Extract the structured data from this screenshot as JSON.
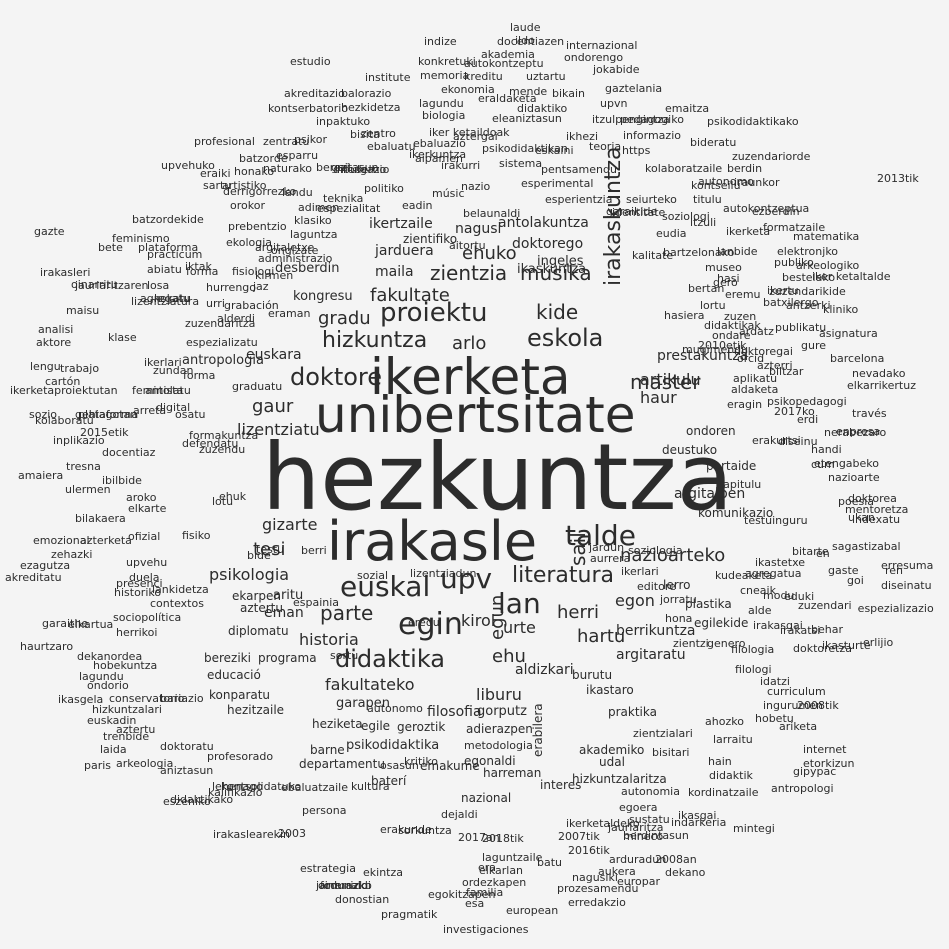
{
  "colors": {
    "background": "#f4f4f4",
    "text": "#2c2c2c"
  },
  "words": [
    "hezkuntza",
    "irakasle",
    "unibertsitate",
    "ikerketa",
    "euskal",
    "egin",
    "upv",
    "lan",
    "talde",
    "literatura",
    "didaktika",
    "proiektu",
    "hizkuntza",
    "eskola",
    "doktore",
    "master",
    "irakaskuntza",
    "sail",
    "musika",
    "kide",
    "zientzia",
    "ehuko",
    "gradu",
    "fakultate",
    "arlo",
    "parte",
    "herri",
    "hartu",
    "ehu",
    "egun",
    "urte",
    "kirol",
    "nazioarteko",
    "gaur",
    "haur",
    "artikulu",
    "lizentziatu",
    "gizarte",
    "tesi",
    "psikologia",
    "fakultateko",
    "historia",
    "liburu",
    "filosofia",
    "aldizkari",
    "egon",
    "berrikuntza",
    "argitaratu",
    "argitalpen",
    "prestakuntza",
    "antolakuntza",
    "doktorego",
    "ikaskuntza",
    "ikertzaile",
    "jarduera",
    "nagusi",
    "ingeles",
    "zientifiko",
    "maila",
    "desberdin",
    "kongresu",
    "euskara",
    "antropologia",
    "garapen",
    "psikodidaktika",
    "gorputz",
    "adierazpen",
    "metodologia",
    "geroztik",
    "komunikazio",
    "deustuko",
    "ondoren",
    "partaide",
    "kapitulu",
    "plastika",
    "lerro",
    "kudeaketa",
    "burutu",
    "praktika",
    "ikastaro",
    "akademiko",
    "egilekide",
    "zientzialari",
    "konparatu",
    "heziketa",
    "programa",
    "eman",
    "aritu",
    "diplomatu",
    "ekarpen",
    "aztertu",
    "bereziki",
    "educació",
    "hezitzaile",
    "egile",
    "barne",
    "departamentu",
    "emakume",
    "egonaldi",
    "harreman",
    "baterí",
    "hizkuntzalaritza",
    "interes",
    "udal",
    "nazional",
    "erabilera",
    "kordinatzaile",
    "ikasgai",
    "doktoregai",
    "agregatua",
    "testuinguru",
    "kultura",
    "erakunde",
    "sorkuntza",
    "ekintza",
    "donostian",
    "pragmatik",
    "investigaciones",
    "egokitzapen",
    "familia",
    "ordezkapen",
    "prozesamendu",
    "european",
    "erredakzio",
    "arduradun",
    "2008an",
    "aukera",
    "europar",
    "dekano",
    "nagusiki",
    "2007tik",
    "2016tik",
    "mineco",
    "berdintasun",
    "ikerketaldeko",
    "jaurlaritza",
    "autonomia",
    "egoera",
    "sustatu",
    "indarkeria",
    "mintegi",
    "laude",
    "indize",
    "docentiazen",
    "internazional",
    "akademia",
    "ondorengo",
    "estudio",
    "konkretuki",
    "autokontzeptu",
    "institute",
    "memoria",
    "kreditu",
    "uztartu",
    "jokabide",
    "akreditazio",
    "balorazio",
    "ekonomia",
    "gaztelania",
    "lagundu",
    "eraldaketa",
    "mende",
    "upvn",
    "kontserbatorio",
    "hezkidetza",
    "biologia",
    "didaktiko",
    "pedagogiko",
    "emaitza",
    "inpaktuko",
    "eleaniztasun",
    "itzulpengintza",
    "psikodidaktikako",
    "bisita",
    "iker ketaildoak",
    "aztergai",
    "ikhezi",
    "informazio",
    "bideratu",
    "ebaluatu",
    "psikodidaktikan",
    "eskaini",
    "https",
    "zuzendariorde",
    "dibulgazio",
    "moderno",
    "pentsamendu",
    "kolaboratzaile",
    "berdin",
    "esperimental",
    "autonomo",
    "iraunkor",
    "esperientzia",
    "autokontzeptua",
    "belaunaldi",
    "matematika",
    "formatzaile",
    "elektronjko",
    "arkeologiko",
    "bestelako",
    "iker ketaltalde",
    "zuzendarikide",
    "kliniko",
    "asignatura",
    "barcelona",
    "nevadako",
    "elkarrikertuz",
    "través",
    "enpresa",
    "etengabeko",
    "nerabezaro",
    "nazioarte",
    "poesia",
    "doktorea",
    "mentoretza",
    "indexatu",
    "sagastizabal",
    "erresuma",
    "diseinatu",
    "espezializazio",
    "erlijio",
    "internet",
    "etorkizun",
    "gipypac",
    "antropologi",
    "curriculum",
    "ingurumen",
    "hobetu",
    "ariketa",
    "2008tik",
    "ahozko",
    "larraitu",
    "didaktik",
    "bisitari",
    "hain",
    "kirmen",
    "kalifikazio",
    "osasun",
    "2017an",
    "2018tik",
    "laguntzaile",
    "elkarlan",
    "batu",
    "esa",
    "estrategia",
    "formazio",
    "oinarrizko",
    "jardunaldi",
    "2003",
    "persona",
    "irakaslearekin",
    "didaktikako",
    "eszeniko",
    "ebaluatzaile",
    "kontsolidatuko",
    "profesorado",
    "lehenago",
    "aniztasun",
    "arkeologia",
    "laida",
    "doktoratu",
    "paris",
    "trenbide",
    "hizkuntzalari",
    "ikasgela",
    "conservatorio",
    "ondorio",
    "bariazio",
    "euskadin",
    "hobekuntza",
    "dekanordea",
    "haurtzaro",
    "elkartua",
    "herrikoi",
    "sociopolítica",
    "contextos",
    "duela",
    "lankidetza",
    "historiko",
    "presenci",
    "upvehu",
    "ofizial",
    "elkarte",
    "aroko",
    "ibilbide",
    "docentiaz",
    "amaiera",
    "bilakaera",
    "azterketa",
    "zehazki",
    "emozional",
    "ezagutza",
    "akreditatu",
    "ulermen",
    "tresna",
    "inplikazio",
    "kolaboratu",
    "sozio",
    "plataforma",
    "gehiagotan",
    "ikerketaproiektutan",
    "2015etik",
    "cartón",
    "trabajo",
    "lengu",
    "aktore",
    "analisi",
    "irakasleri",
    "jaurlaritzaren",
    "maisu",
    "bete",
    "feminismo",
    "batzordekide",
    "plataforma",
    "practicum",
    "abiatu",
    "forma",
    "fisiologi",
    "ekologia",
    "argitaletxe",
    "administrazio",
    "ongizate",
    "laguntza",
    "klasiko",
    "teknika",
    "politiko",
    "eadin",
    "músic",
    "nazio",
    "sistema",
    "ikerkuntza",
    "irakurri",
    "aipamen",
    "zentro",
    "gaitasun",
    "berezi",
    "esparru",
    "batzorde",
    "profesional",
    "zentratu",
    "psikor",
    "honako",
    "naturako",
    "artistiko",
    "derrigorrezko",
    "landu",
    "orokor",
    "adimen",
    "espezialitat",
    "prebentzio",
    "eraiki",
    "upvehuko",
    "sartu",
    "iktak",
    "lizentziatura",
    "losa",
    "agregatu",
    "kokatu",
    "hurrengo",
    "jaz",
    "urri",
    "grabación",
    "zuzendaritza",
    "alderdi",
    "eraman",
    "espezializatu",
    "ikerlari",
    "zundan",
    "forma",
    "graduatu",
    "feminista",
    "arreta",
    "digital",
    "osatu",
    "formakuntza",
    "zuzendu",
    "lotu",
    "fisiko",
    "bide",
    "berri",
    "sozial",
    "lizentziadun",
    "jardun",
    "soziologia",
    "aurrera",
    "ikerlari",
    "editore",
    "jorratu",
    "hona",
    "cneaik",
    "alde",
    "zuzendari",
    "irakasgai",
    "irakatsi",
    "behar",
    "filologia",
    "doktoretza",
    "ikasturte",
    "zientzi",
    "genero",
    "filologi",
    "idatzi",
    "ikerketa",
    "ezberdin",
    "gaste",
    "en",
    "bitarte",
    "ikastetxe",
    "modu",
    "eduki",
    "goi",
    "eremu",
    "hasi",
    "zuzen",
    "ardatz",
    "ondare",
    "didaktikak",
    "batxilergo",
    "2010etik",
    "publikatu",
    "gure",
    "mugimendu",
    "azterri",
    "biltzar",
    "aplikatu",
    "aldaketa",
    "eragin",
    "psikopedagogi",
    "erdi",
    "diseinu",
    "erakurtsi",
    "handi",
    "kontseilu",
    "titulu",
    "soziologi",
    "itzuli",
    "eudia",
    "garaikide",
    "aitortu",
    "identitate",
    "kalitate",
    "lanbide",
    "bertan",
    "hasiera",
    "museo",
    "publiko",
    "antzerki",
    "ikertu",
    "gero",
    "ebaluazio",
    "eredu",
    "2013tik",
    "gazte",
    "oinarritu",
    "klase",
    "antolatu",
    "defendatu",
    "ehuk",
    "testu",
    "espainia",
    "sortu",
    "autonomo",
    "kritiko",
    "dejaldi",
    "era",
    "ildo",
    "bikain",
    "teoria",
    "seiurteko",
    "bartzelonako",
    "lortu",
    "orcid",
    "2017ko",
    "cum",
    "ukan",
    "ren",
    "garaithe",
    "lagundu",
    "aztertu"
  ]
}
